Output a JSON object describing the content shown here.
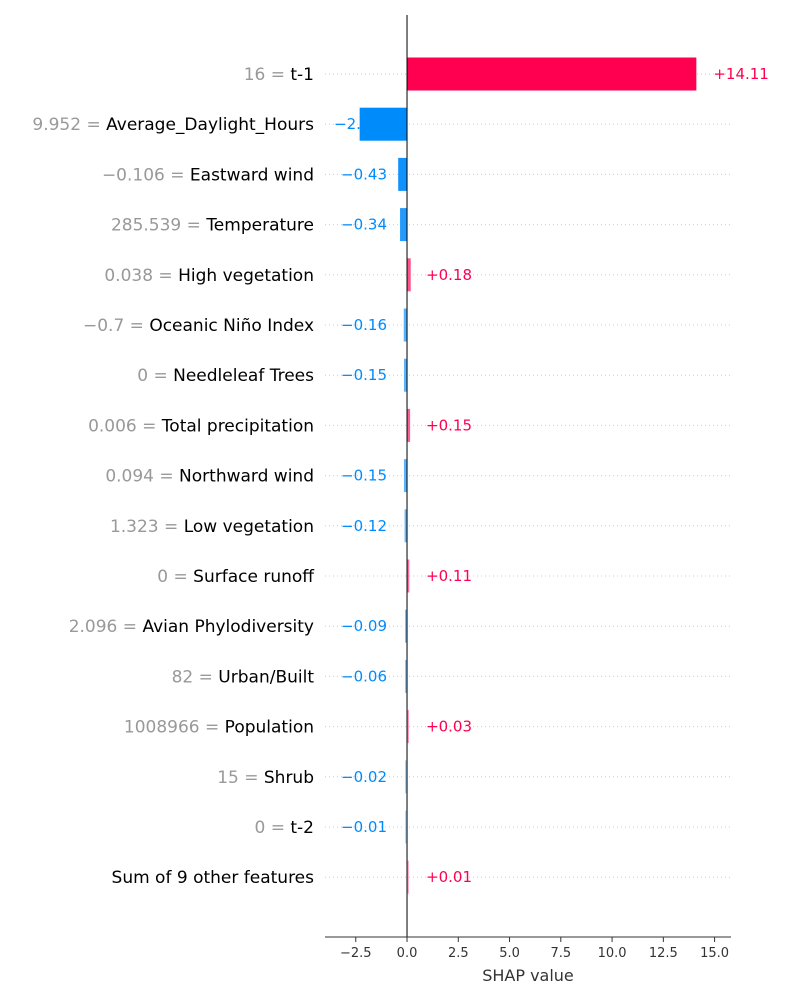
{
  "chart_data": {
    "type": "bar",
    "orientation": "horizontal",
    "xlabel": "SHAP value",
    "xlim": [
      -4,
      15.8
    ],
    "xticks": [
      -2.5,
      0.0,
      2.5,
      5.0,
      7.5,
      10.0,
      12.5,
      15.0
    ],
    "xtick_labels": [
      "−2.5",
      "0.0",
      "2.5",
      "5.0",
      "7.5",
      "10.0",
      "12.5",
      "15.0"
    ],
    "grid": false,
    "colors": {
      "positive": "#ff0051",
      "negative": "#008bfb",
      "feature_value": "#999999",
      "feature_name": "#000000"
    },
    "rows": [
      {
        "feature_value": "16",
        "feature": "t-1",
        "value": 14.11,
        "label": "+14.11"
      },
      {
        "feature_value": "9.952",
        "feature": "Average_Daylight_Hours",
        "value": -2.31,
        "label": "−2.31"
      },
      {
        "feature_value": "−0.106",
        "feature": "Eastward wind",
        "value": -0.43,
        "label": "−0.43"
      },
      {
        "feature_value": "285.539",
        "feature": "Temperature",
        "value": -0.34,
        "label": "−0.34"
      },
      {
        "feature_value": "0.038",
        "feature": "High vegetation",
        "value": 0.18,
        "label": "+0.18"
      },
      {
        "feature_value": "−0.7",
        "feature": "Oceanic Niño Index",
        "value": -0.16,
        "label": "−0.16"
      },
      {
        "feature_value": "0",
        "feature": "Needleleaf Trees",
        "value": -0.15,
        "label": "−0.15"
      },
      {
        "feature_value": "0.006",
        "feature": "Total precipitation",
        "value": 0.15,
        "label": "+0.15"
      },
      {
        "feature_value": "0.094",
        "feature": "Northward wind",
        "value": -0.15,
        "label": "−0.15"
      },
      {
        "feature_value": "1.323",
        "feature": "Low vegetation",
        "value": -0.12,
        "label": "−0.12"
      },
      {
        "feature_value": "0",
        "feature": "Surface runoff",
        "value": 0.11,
        "label": "+0.11"
      },
      {
        "feature_value": "2.096",
        "feature": "Avian Phylodiversity",
        "value": -0.09,
        "label": "−0.09"
      },
      {
        "feature_value": "82",
        "feature": "Urban/Built",
        "value": -0.06,
        "label": "−0.06"
      },
      {
        "feature_value": "1008966",
        "feature": "Population",
        "value": 0.03,
        "label": "+0.03"
      },
      {
        "feature_value": "15",
        "feature": "Shrub",
        "value": -0.02,
        "label": "−0.02"
      },
      {
        "feature_value": "0",
        "feature": "t-2",
        "value": -0.01,
        "label": "−0.01"
      },
      {
        "feature_value": "",
        "feature": "Sum of 9 other features",
        "value": 0.01,
        "label": "+0.01"
      }
    ]
  }
}
